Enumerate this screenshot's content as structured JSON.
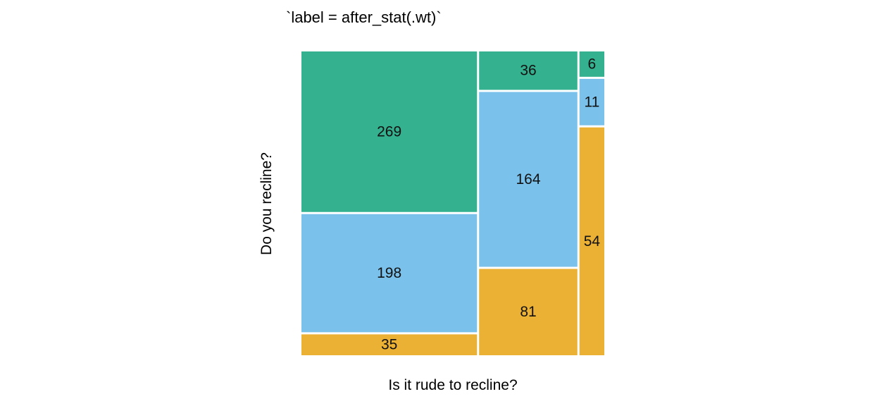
{
  "chart_data": {
    "type": "mosaic",
    "title": "`label = after_stat(.wt)`",
    "xlabel": "Is it rude to recline?",
    "ylabel": "Do you recline?",
    "colors": [
      "#34B18F",
      "#7AC2EC",
      "#EBB135"
    ],
    "columns": [
      {
        "cells": [
          269,
          198,
          35
        ]
      },
      {
        "cells": [
          36,
          164,
          81
        ]
      },
      {
        "cells": [
          6,
          11,
          54
        ]
      }
    ]
  }
}
